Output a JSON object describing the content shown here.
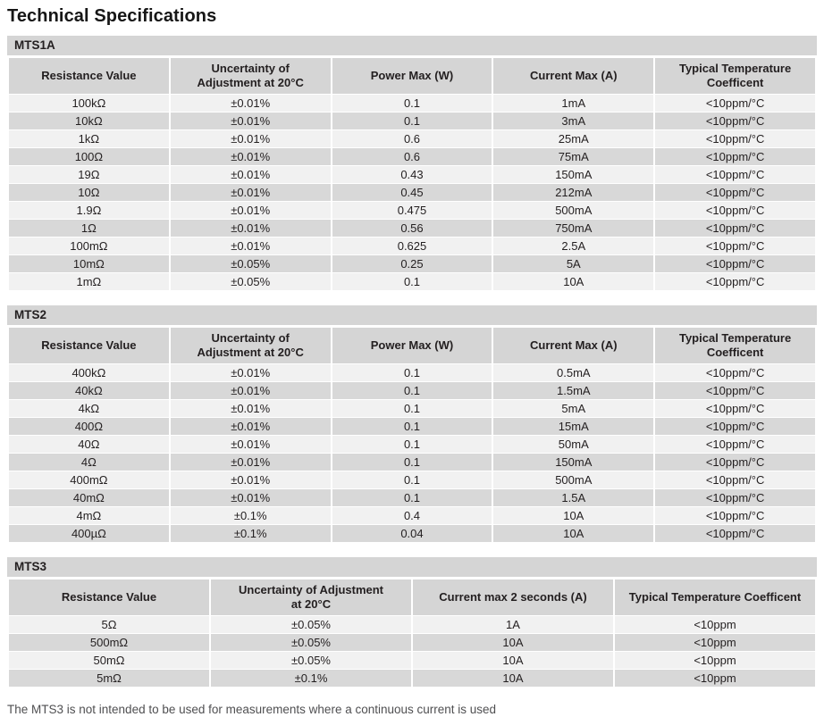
{
  "page": {
    "title": "Technical Specifications",
    "footnote": "The MTS3 is not intended to be used for measurements where a continuous current is used"
  },
  "colors": {
    "band_bg": "#d5d5d5",
    "header_bg": "#d5d5d5",
    "row_light_bg": "#f1f1f1",
    "row_dark_bg": "#d8d8d8",
    "text": "#231f20",
    "footnote_text": "#4f4f51"
  },
  "tables": [
    {
      "name": "MTS1A",
      "headers": [
        "Resistance Value",
        "Uncertainty of\nAdjustment at 20°C",
        "Power Max (W)",
        "Current Max (A)",
        "Typical Temperature\nCoefficent"
      ],
      "rows": [
        [
          "100kΩ",
          "±0.01%",
          "0.1",
          "1mA",
          "<10ppm/°C"
        ],
        [
          "10kΩ",
          "±0.01%",
          "0.1",
          "3mA",
          "<10ppm/°C"
        ],
        [
          "1kΩ",
          "±0.01%",
          "0.6",
          "25mA",
          "<10ppm/°C"
        ],
        [
          "100Ω",
          "±0.01%",
          "0.6",
          "75mA",
          "<10ppm/°C"
        ],
        [
          "19Ω",
          "±0.01%",
          "0.43",
          "150mA",
          "<10ppm/°C"
        ],
        [
          "10Ω",
          "±0.01%",
          "0.45",
          "212mA",
          "<10ppm/°C"
        ],
        [
          "1.9Ω",
          "±0.01%",
          "0.475",
          "500mA",
          "<10ppm/°C"
        ],
        [
          "1Ω",
          "±0.01%",
          "0.56",
          "750mA",
          "<10ppm/°C"
        ],
        [
          "100mΩ",
          "±0.01%",
          "0.625",
          "2.5A",
          "<10ppm/°C"
        ],
        [
          "10mΩ",
          "±0.05%",
          "0.25",
          "5A",
          "<10ppm/°C"
        ],
        [
          "1mΩ",
          "±0.05%",
          "0.1",
          "10A",
          "<10ppm/°C"
        ]
      ]
    },
    {
      "name": "MTS2",
      "headers": [
        "Resistance Value",
        "Uncertainty of\nAdjustment at 20°C",
        "Power Max (W)",
        "Current Max (A)",
        "Typical Temperature\nCoefficent"
      ],
      "rows": [
        [
          "400kΩ",
          "±0.01%",
          "0.1",
          "0.5mA",
          "<10ppm/°C"
        ],
        [
          "40kΩ",
          "±0.01%",
          "0.1",
          "1.5mA",
          "<10ppm/°C"
        ],
        [
          "4kΩ",
          "±0.01%",
          "0.1",
          "5mA",
          "<10ppm/°C"
        ],
        [
          "400Ω",
          "±0.01%",
          "0.1",
          "15mA",
          "<10ppm/°C"
        ],
        [
          "40Ω",
          "±0.01%",
          "0.1",
          "50mA",
          "<10ppm/°C"
        ],
        [
          "4Ω",
          "±0.01%",
          "0.1",
          "150mA",
          "<10ppm/°C"
        ],
        [
          "400mΩ",
          "±0.01%",
          "0.1",
          "500mA",
          "<10ppm/°C"
        ],
        [
          "40mΩ",
          "±0.01%",
          "0.1",
          "1.5A",
          "<10ppm/°C"
        ],
        [
          "4mΩ",
          "±0.1%",
          "0.4",
          "10A",
          "<10ppm/°C"
        ],
        [
          "400µΩ",
          "±0.1%",
          "0.04",
          "10A",
          "<10ppm/°C"
        ]
      ]
    },
    {
      "name": "MTS3",
      "headers": [
        "Resistance Value",
        "Uncertainty of Adjustment\nat 20°C",
        "Current max 2 seconds (A)",
        "Typical Temperature Coefficent"
      ],
      "rows": [
        [
          "5Ω",
          "±0.05%",
          "1A",
          "<10ppm"
        ],
        [
          "500mΩ",
          "±0.05%",
          "10A",
          "<10ppm"
        ],
        [
          "50mΩ",
          "±0.05%",
          "10A",
          "<10ppm"
        ],
        [
          "5mΩ",
          "±0.1%",
          "10A",
          "<10ppm"
        ]
      ]
    }
  ]
}
